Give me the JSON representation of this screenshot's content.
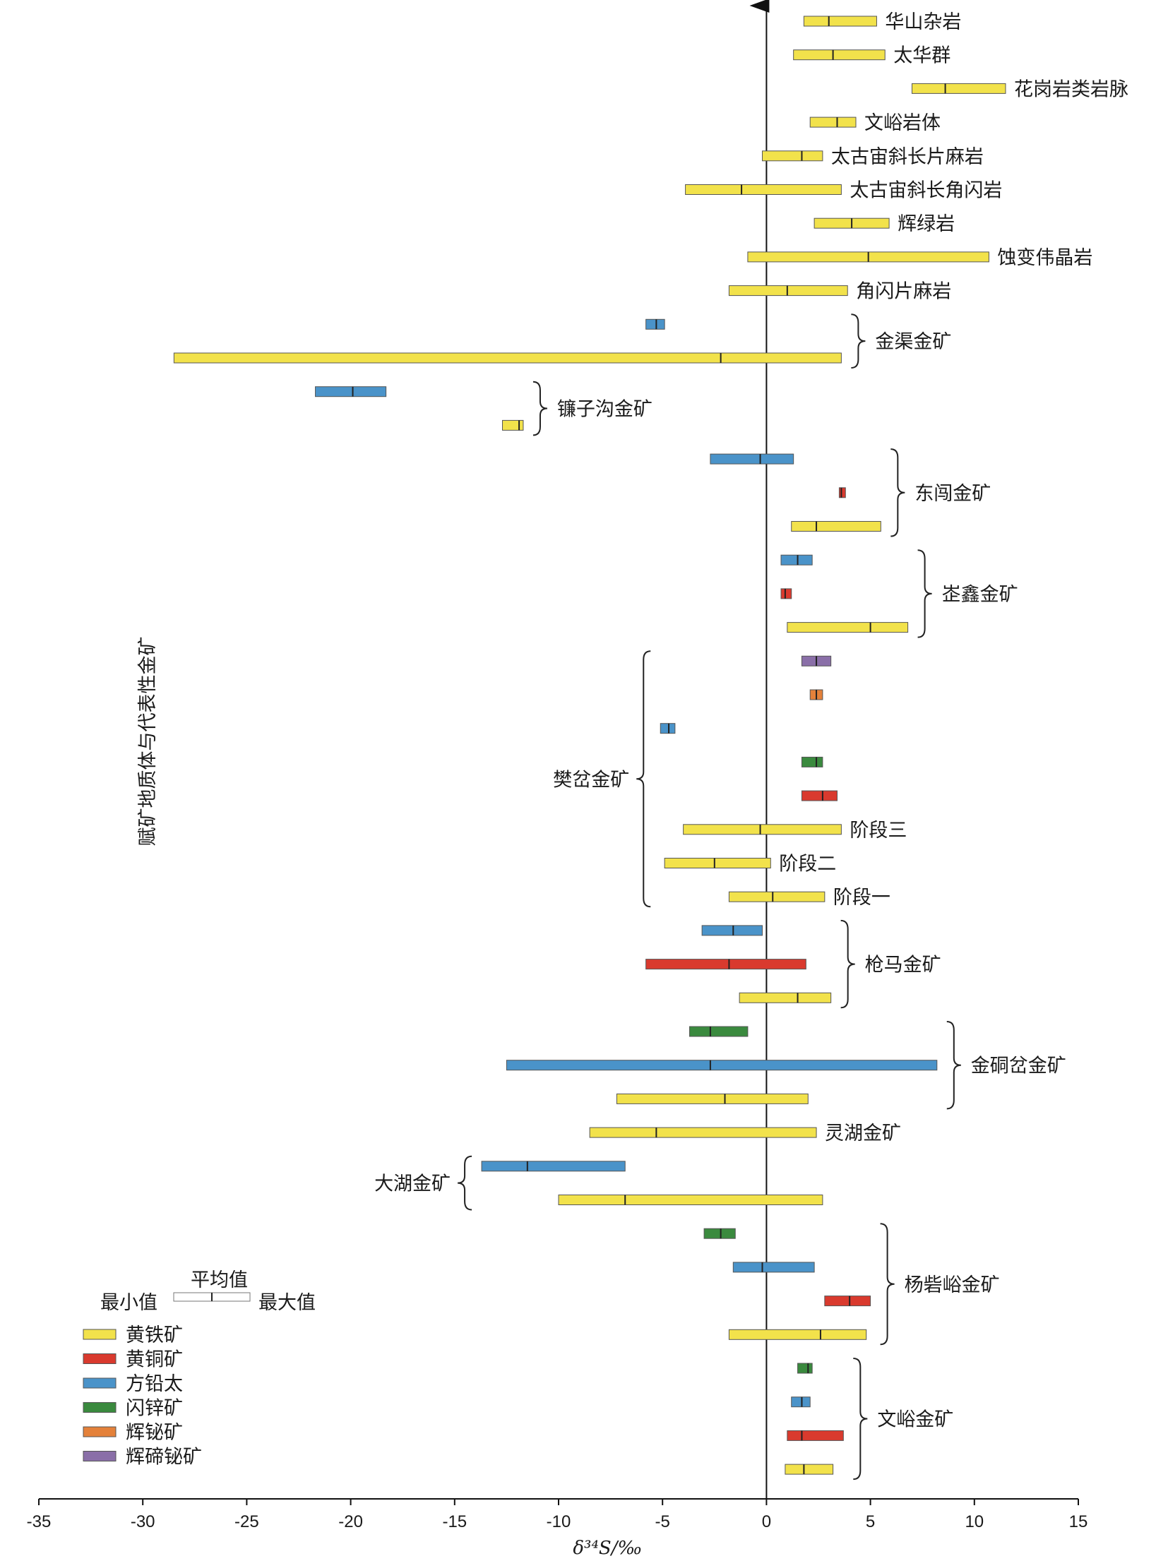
{
  "chart_data": {
    "type": "range-bar",
    "xlabel": "δ³⁴S/‰",
    "ylabel": "赋矿地质体与代表性金矿",
    "xlim": [
      -35,
      15
    ],
    "xticks": [
      -35,
      -30,
      -25,
      -20,
      -15,
      -10,
      -5,
      0,
      5,
      10,
      15
    ],
    "minerals": {
      "pyrite": {
        "name": "黄铁矿",
        "color": "#f2e24b"
      },
      "chalcopyrite": {
        "name": "黄铜矿",
        "color": "#d93a2e"
      },
      "galena": {
        "name": "方铅太",
        "color": "#4a93c9"
      },
      "sphalerite": {
        "name": "闪锌矿",
        "color": "#3a8a3e"
      },
      "bismuthinite": {
        "name": "辉铋矿",
        "color": "#e4813a"
      },
      "tetradymite": {
        "name": "辉碲铋矿",
        "color": "#8a6fa8"
      }
    },
    "rows": [
      {
        "mineral": "pyrite",
        "min": 1.8,
        "mean": 3.0,
        "max": 5.3
      },
      {
        "mineral": "pyrite",
        "min": 1.3,
        "mean": 3.2,
        "max": 5.7
      },
      {
        "mineral": "pyrite",
        "min": 7.0,
        "mean": 8.6,
        "max": 11.5
      },
      {
        "mineral": "pyrite",
        "min": 2.1,
        "mean": 3.4,
        "max": 4.3
      },
      {
        "mineral": "pyrite",
        "min": -0.2,
        "mean": 1.7,
        "max": 2.7
      },
      {
        "mineral": "pyrite",
        "min": -3.9,
        "mean": -1.2,
        "max": 3.6
      },
      {
        "mineral": "pyrite",
        "min": 2.3,
        "mean": 4.1,
        "max": 5.9
      },
      {
        "mineral": "pyrite",
        "min": -0.9,
        "mean": 4.9,
        "max": 10.7
      },
      {
        "mineral": "pyrite",
        "min": -1.8,
        "mean": 1.0,
        "max": 3.9
      },
      {
        "mineral": "galena",
        "min": -5.8,
        "mean": -5.3,
        "max": -4.9
      },
      {
        "mineral": "pyrite",
        "min": -28.5,
        "mean": -2.2,
        "max": 3.6
      },
      {
        "mineral": "galena",
        "min": -21.7,
        "mean": -19.9,
        "max": -18.3
      },
      {
        "mineral": "pyrite",
        "min": -12.7,
        "mean": -11.9,
        "max": -11.7
      },
      {
        "mineral": "galena",
        "min": -2.7,
        "mean": -0.3,
        "max": 1.3
      },
      {
        "mineral": "chalcopyrite",
        "min": 3.5,
        "mean": 3.6,
        "max": 3.8
      },
      {
        "mineral": "pyrite",
        "min": 1.2,
        "mean": 2.4,
        "max": 5.5
      },
      {
        "mineral": "galena",
        "min": 0.7,
        "mean": 1.5,
        "max": 2.2
      },
      {
        "mineral": "chalcopyrite",
        "min": 0.7,
        "mean": 0.9,
        "max": 1.2
      },
      {
        "mineral": "pyrite",
        "min": 1.0,
        "mean": 5.0,
        "max": 6.8
      },
      {
        "mineral": "tetradymite",
        "min": 1.7,
        "mean": 2.4,
        "max": 3.1
      },
      {
        "mineral": "bismuthinite",
        "min": 2.1,
        "mean": 2.4,
        "max": 2.7
      },
      {
        "mineral": "galena",
        "min": -5.1,
        "mean": -4.7,
        "max": -4.4
      },
      {
        "mineral": "sphalerite",
        "min": 1.7,
        "mean": 2.4,
        "max": 2.7
      },
      {
        "mineral": "chalcopyrite",
        "min": 1.7,
        "mean": 2.7,
        "max": 3.4
      },
      {
        "mineral": "pyrite",
        "min": -4.0,
        "mean": -0.3,
        "max": 3.6
      },
      {
        "mineral": "pyrite",
        "min": -4.9,
        "mean": -2.5,
        "max": 0.2
      },
      {
        "mineral": "pyrite",
        "min": -1.8,
        "mean": 0.3,
        "max": 2.8
      },
      {
        "mineral": "galena",
        "min": -3.1,
        "mean": -1.6,
        "max": -0.2
      },
      {
        "mineral": "chalcopyrite",
        "min": -5.8,
        "mean": -1.8,
        "max": 1.9
      },
      {
        "mineral": "pyrite",
        "min": -1.3,
        "mean": 1.5,
        "max": 3.1
      },
      {
        "mineral": "sphalerite",
        "min": -3.7,
        "mean": -2.7,
        "max": -0.9
      },
      {
        "mineral": "galena",
        "min": -12.5,
        "mean": -2.7,
        "max": 8.2
      },
      {
        "mineral": "pyrite",
        "min": -7.2,
        "mean": -2.0,
        "max": 2.0
      },
      {
        "mineral": "pyrite",
        "min": -8.5,
        "mean": -5.3,
        "max": 2.4
      },
      {
        "mineral": "galena",
        "min": -13.7,
        "mean": -11.5,
        "max": -6.8
      },
      {
        "mineral": "pyrite",
        "min": -10.0,
        "mean": -6.8,
        "max": 2.7
      },
      {
        "mineral": "sphalerite",
        "min": -3.0,
        "mean": -2.2,
        "max": -1.5
      },
      {
        "mineral": "galena",
        "min": -1.6,
        "mean": -0.2,
        "max": 2.3
      },
      {
        "mineral": "chalcopyrite",
        "min": 2.8,
        "mean": 4.0,
        "max": 5.0
      },
      {
        "mineral": "pyrite",
        "min": -1.8,
        "mean": 2.6,
        "max": 4.8
      },
      {
        "mineral": "sphalerite",
        "min": 1.5,
        "mean": 2.0,
        "max": 2.2
      },
      {
        "mineral": "galena",
        "min": 1.2,
        "mean": 1.7,
        "max": 2.1
      },
      {
        "mineral": "chalcopyrite",
        "min": 1.0,
        "mean": 1.7,
        "max": 3.7
      },
      {
        "mineral": "pyrite",
        "min": 0.9,
        "mean": 1.8,
        "max": 3.2
      }
    ],
    "labels": [
      {
        "row": 0,
        "text": "华山杂岩",
        "side": "right"
      },
      {
        "row": 1,
        "text": "太华群",
        "side": "right"
      },
      {
        "row": 2,
        "text": "花岗岩类岩脉",
        "side": "right"
      },
      {
        "row": 3,
        "text": "文峪岩体",
        "side": "right"
      },
      {
        "row": 4,
        "text": "太古宙斜长片麻岩",
        "side": "right"
      },
      {
        "row": 5,
        "text": "太古宙斜长角闪岩",
        "side": "right"
      },
      {
        "row": 6,
        "text": "辉绿岩",
        "side": "right"
      },
      {
        "row": 7,
        "text": "蚀变伟晶岩",
        "side": "right"
      },
      {
        "row": 8,
        "text": "角闪片麻岩",
        "side": "right"
      },
      {
        "row": 24,
        "text": "阶段三",
        "side": "right"
      },
      {
        "row": 25,
        "text": "阶段二",
        "side": "right"
      },
      {
        "row": 26,
        "text": "阶段一",
        "side": "right"
      },
      {
        "row": 33,
        "text": "灵湖金矿",
        "side": "right"
      }
    ],
    "groups": [
      {
        "name": "金渠金矿",
        "rows": [
          9,
          10
        ],
        "side": "right"
      },
      {
        "name": "镰子沟金矿",
        "rows": [
          11,
          12
        ],
        "side": "right"
      },
      {
        "name": "东闯金矿",
        "rows": [
          13,
          15
        ],
        "side": "right"
      },
      {
        "name": "峜鑫金矿",
        "rows": [
          16,
          18
        ],
        "side": "right"
      },
      {
        "name": "樊岔金矿",
        "rows": [
          19,
          26
        ],
        "side": "left"
      },
      {
        "name": "枪马金矿",
        "rows": [
          27,
          29
        ],
        "side": "right"
      },
      {
        "name": "金硐岔金矿",
        "rows": [
          30,
          32
        ],
        "side": "right"
      },
      {
        "name": "大湖金矿",
        "rows": [
          34,
          35
        ],
        "side": "left"
      },
      {
        "name": "杨砦峪金矿",
        "rows": [
          36,
          39
        ],
        "side": "right"
      },
      {
        "name": "文峪金矿",
        "rows": [
          40,
          43
        ],
        "side": "right"
      }
    ],
    "legend": {
      "min_label": "最小值",
      "mean_label": "平均值",
      "max_label": "最大值",
      "placement": "bottom-left",
      "order": [
        "pyrite",
        "chalcopyrite",
        "galena",
        "sphalerite",
        "bismuthinite",
        "tetradymite"
      ]
    }
  }
}
